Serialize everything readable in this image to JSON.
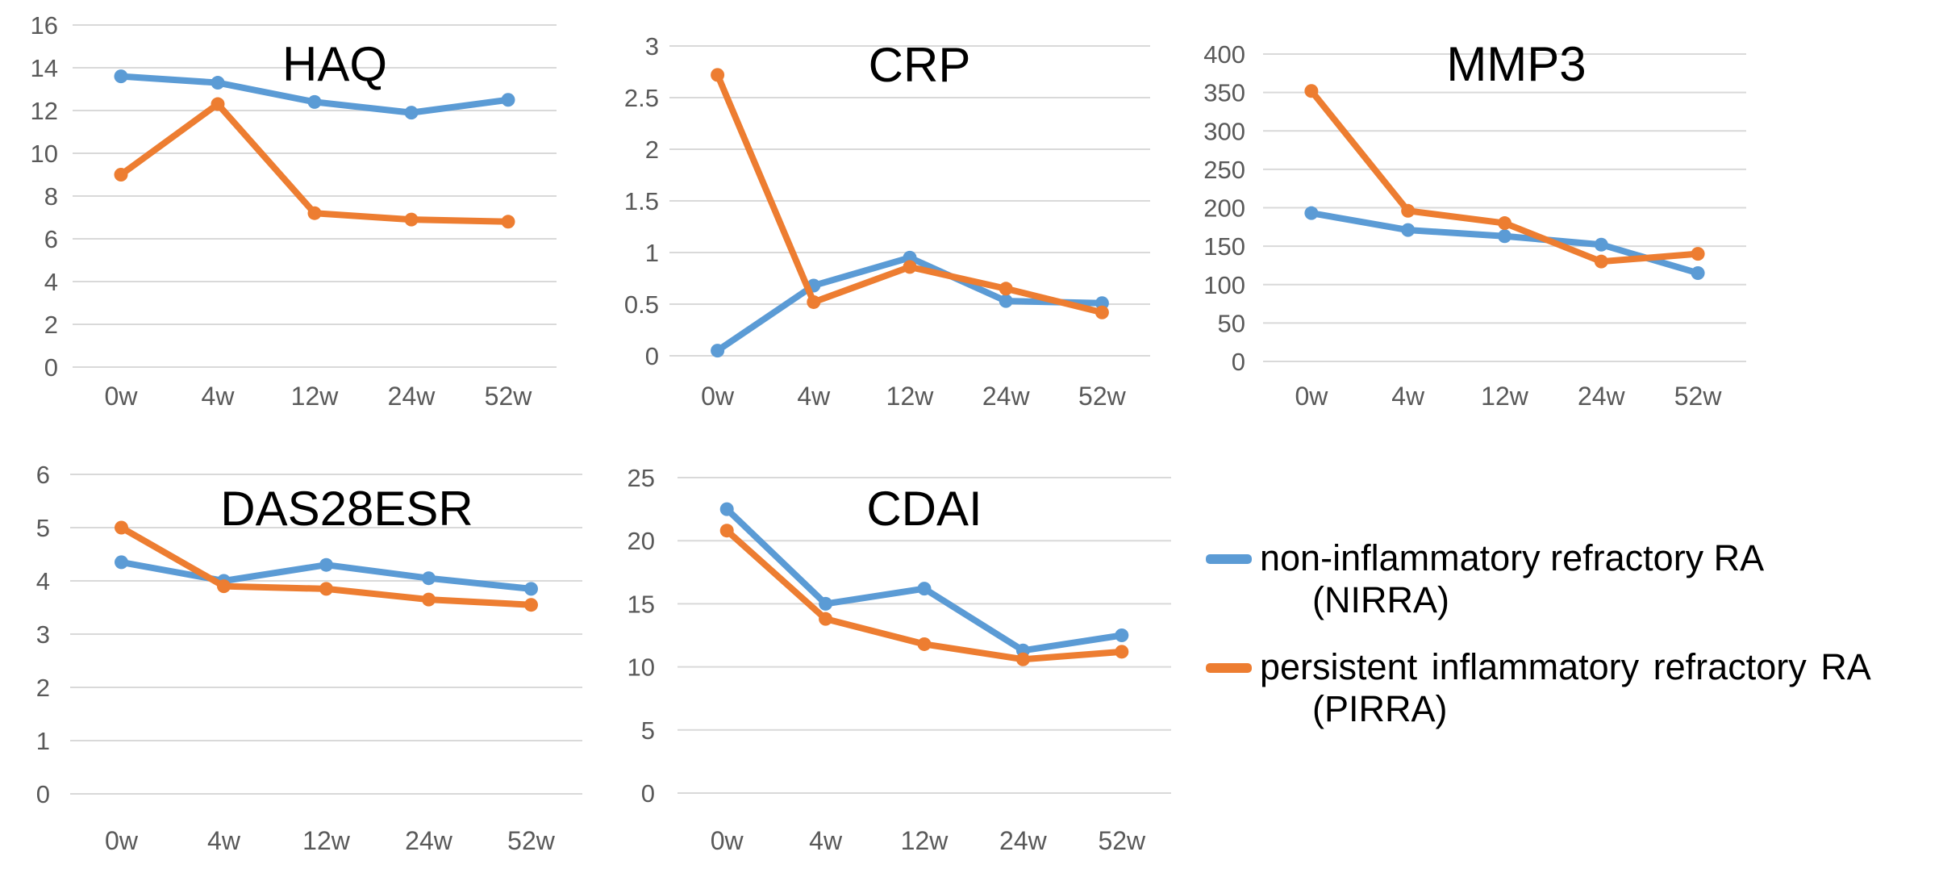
{
  "figure": {
    "background": "#ffffff"
  },
  "colors": {
    "nirra": "#5B9BD5",
    "pirra": "#ED7D31",
    "gridline": "#D9D9D9",
    "tick_label": "#595959",
    "title": "#000000"
  },
  "categories": [
    "0w",
    "4w",
    "12w",
    "24w",
    "52w"
  ],
  "chart_data": [
    {
      "id": "haq",
      "type": "line",
      "title": "HAQ",
      "categories": [
        "0w",
        "4w",
        "12w",
        "24w",
        "52w"
      ],
      "xlabel": "",
      "ylabel": "",
      "ylim": [
        0,
        16
      ],
      "y_ticks": [
        0,
        2,
        4,
        6,
        8,
        10,
        12,
        14,
        16
      ],
      "grid": true,
      "legend_position": "none",
      "series": [
        {
          "name": "non-inflammatory refractory RA (NIRRA)",
          "key": "nirra",
          "color": "#5B9BD5",
          "values": [
            13.6,
            13.3,
            12.4,
            11.9,
            12.5
          ]
        },
        {
          "name": "persistent inflammatory refractory RA (PIRRA)",
          "key": "pirra",
          "color": "#ED7D31",
          "values": [
            9.0,
            12.3,
            7.2,
            6.9,
            6.8
          ]
        }
      ]
    },
    {
      "id": "crp",
      "type": "line",
      "title": "CRP",
      "categories": [
        "0w",
        "4w",
        "12w",
        "24w",
        "52w"
      ],
      "xlabel": "",
      "ylabel": "",
      "ylim": [
        0,
        3
      ],
      "y_ticks": [
        0,
        0.5,
        1,
        1.5,
        2,
        2.5,
        3
      ],
      "grid": true,
      "legend_position": "none",
      "series": [
        {
          "name": "non-inflammatory refractory RA (NIRRA)",
          "key": "nirra",
          "color": "#5B9BD5",
          "values": [
            0.05,
            0.68,
            0.95,
            0.53,
            0.51
          ]
        },
        {
          "name": "persistent inflammatory refractory RA (PIRRA)",
          "key": "pirra",
          "color": "#ED7D31",
          "values": [
            2.72,
            0.52,
            0.86,
            0.65,
            0.42
          ]
        }
      ]
    },
    {
      "id": "mmp3",
      "type": "line",
      "title": "MMP3",
      "categories": [
        "0w",
        "4w",
        "12w",
        "24w",
        "52w"
      ],
      "xlabel": "",
      "ylabel": "",
      "ylim": [
        0,
        400
      ],
      "y_ticks": [
        0,
        50,
        100,
        150,
        200,
        250,
        300,
        350,
        400
      ],
      "grid": true,
      "legend_position": "none",
      "series": [
        {
          "name": "non-inflammatory refractory RA (NIRRA)",
          "key": "nirra",
          "color": "#5B9BD5",
          "values": [
            193,
            171,
            163,
            152,
            115
          ]
        },
        {
          "name": "persistent inflammatory refractory RA (PIRRA)",
          "key": "pirra",
          "color": "#ED7D31",
          "values": [
            352,
            196,
            180,
            130,
            140
          ]
        }
      ]
    },
    {
      "id": "das28esr",
      "type": "line",
      "title": "DAS28ESR",
      "categories": [
        "0w",
        "4w",
        "12w",
        "24w",
        "52w"
      ],
      "xlabel": "",
      "ylabel": "",
      "ylim": [
        0,
        6
      ],
      "y_ticks": [
        0,
        1,
        2,
        3,
        4,
        5,
        6
      ],
      "grid": true,
      "legend_position": "none",
      "series": [
        {
          "name": "non-inflammatory refractory RA (NIRRA)",
          "key": "nirra",
          "color": "#5B9BD5",
          "values": [
            4.35,
            4.0,
            4.3,
            4.05,
            3.85
          ]
        },
        {
          "name": "persistent inflammatory refractory RA (PIRRA)",
          "key": "pirra",
          "color": "#ED7D31",
          "values": [
            5.0,
            3.9,
            3.85,
            3.65,
            3.55
          ]
        }
      ]
    },
    {
      "id": "cdai",
      "type": "line",
      "title": "CDAI",
      "categories": [
        "0w",
        "4w",
        "12w",
        "24w",
        "52w"
      ],
      "xlabel": "",
      "ylabel": "",
      "ylim": [
        0,
        25
      ],
      "y_ticks": [
        0,
        5,
        10,
        15,
        20,
        25
      ],
      "grid": true,
      "legend_position": "none",
      "series": [
        {
          "name": "non-inflammatory refractory RA (NIRRA)",
          "key": "nirra",
          "color": "#5B9BD5",
          "values": [
            22.5,
            15.0,
            16.2,
            11.3,
            12.5
          ]
        },
        {
          "name": "persistent inflammatory refractory RA (PIRRA)",
          "key": "pirra",
          "color": "#ED7D31",
          "values": [
            20.8,
            13.8,
            11.8,
            10.6,
            11.2
          ]
        }
      ]
    }
  ],
  "legend": {
    "items": [
      {
        "key": "nirra",
        "color": "#5B9BD5",
        "label_line1": "non-inflammatory refractory RA",
        "label_line2": "(NIRRA)"
      },
      {
        "key": "pirra",
        "color": "#ED7D31",
        "label_line1": "persistent inflammatory refractory RA",
        "label_line2": "(PIRRA)"
      }
    ]
  }
}
